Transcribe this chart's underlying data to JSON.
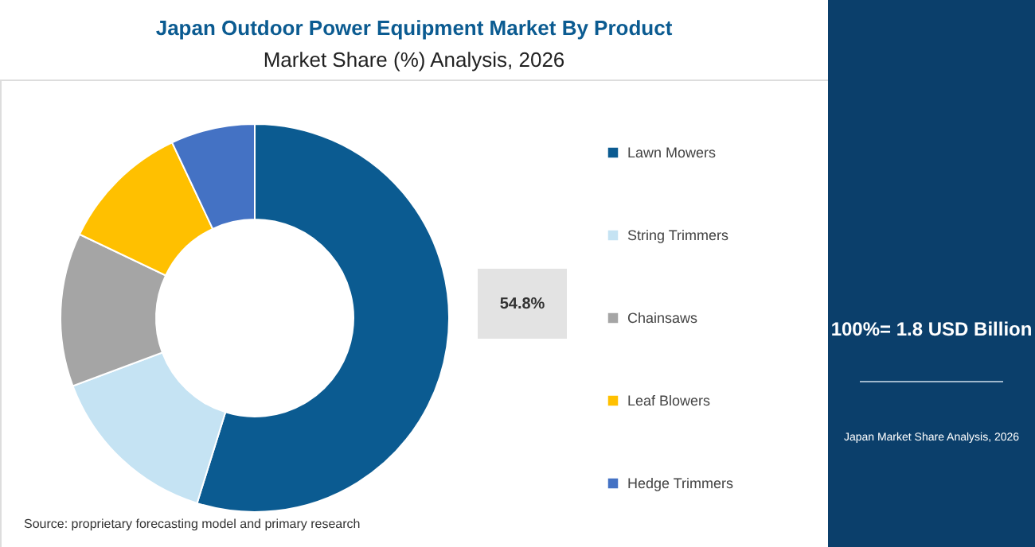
{
  "chart_data": {
    "type": "donut",
    "title": "Japan Outdoor Power Equipment Market By Product",
    "subtitle": "Market Share (%) Analysis, 2026",
    "categories": [
      "Lawn Mowers",
      "String Trimmers",
      "Chainsaws",
      "Leaf Blowers",
      "Hedge Trimmers"
    ],
    "values": [
      54.8,
      14.5,
      12.8,
      10.9,
      7.0
    ],
    "colors": [
      "#0b5b91",
      "#c5e3f3",
      "#a5a5a5",
      "#ffc000",
      "#4472c4"
    ],
    "value_labels": [
      "54.8%",
      null,
      null,
      null,
      null
    ],
    "legend": "right",
    "annotations": [
      "100%= 1.8 USD Billion",
      "Japan Market Share Analysis, 2026",
      "Source: proprietary forecasting model and primary research"
    ]
  }
}
